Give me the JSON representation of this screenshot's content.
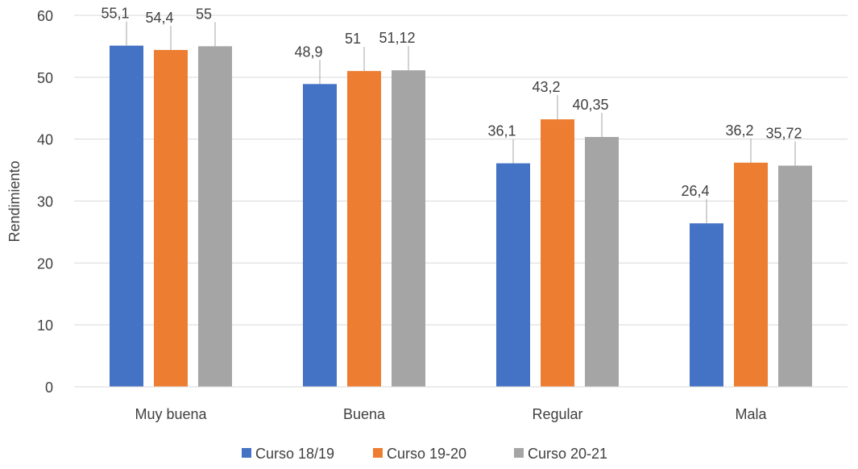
{
  "chart_data": {
    "type": "bar",
    "title": "",
    "xlabel": "",
    "ylabel": "Rendimiento",
    "ylim": [
      0,
      60
    ],
    "yticks": [
      0,
      10,
      20,
      30,
      40,
      50,
      60
    ],
    "grid": true,
    "legend_position": "bottom",
    "categories": [
      "Muy buena",
      "Buena",
      "Regular",
      "Mala"
    ],
    "series": [
      {
        "name": "Curso 18/19",
        "color": "#4472C4",
        "values": [
          55.1,
          48.9,
          36.1,
          26.4
        ],
        "labels": [
          "55,1",
          "48,9",
          "36,1",
          "26,4"
        ]
      },
      {
        "name": "Curso 19-20",
        "color": "#ED7D31",
        "values": [
          54.4,
          51,
          43.2,
          36.2
        ],
        "labels": [
          "54,4",
          "51",
          "43,2",
          "36,2"
        ]
      },
      {
        "name": "Curso 20-21",
        "color": "#A5A5A5",
        "values": [
          55,
          51.12,
          40.35,
          35.72
        ],
        "labels": [
          "55",
          "51,12",
          "40,35",
          "35,72"
        ]
      }
    ]
  }
}
